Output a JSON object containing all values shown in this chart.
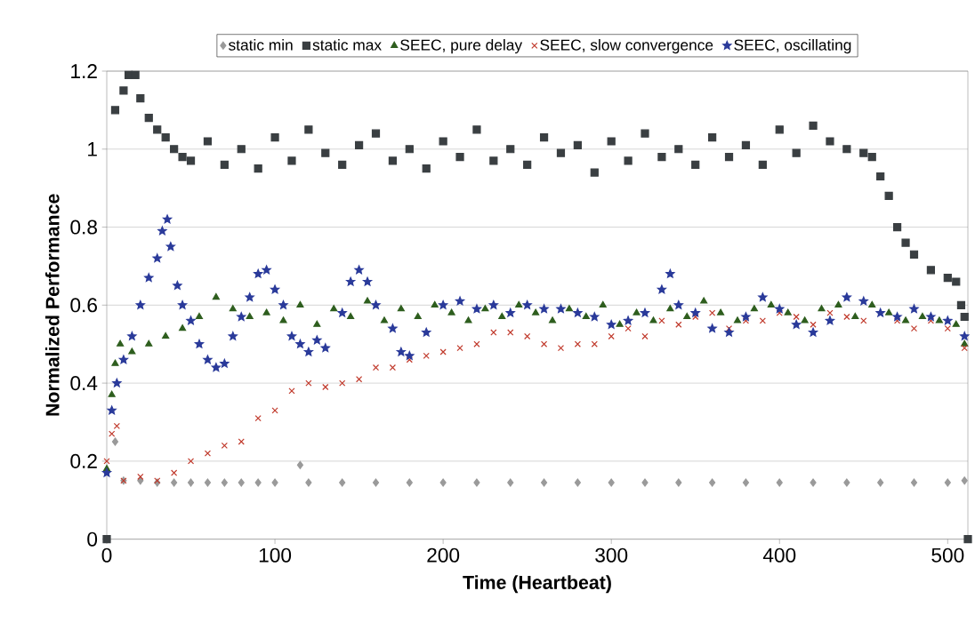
{
  "chart_data": {
    "type": "scatter",
    "xlabel": "Time (Heartbeat)",
    "ylabel": "Normalized Performance",
    "xlim": [
      0,
      512
    ],
    "ylim": [
      0,
      1.2
    ],
    "xticks": [
      0,
      100,
      200,
      300,
      400,
      500
    ],
    "yticks": [
      0,
      0.2,
      0.4,
      0.6,
      0.8,
      1,
      1.2
    ],
    "grid": "y",
    "legend": "top",
    "series": [
      {
        "name": "static min",
        "color": "#9a9a9a",
        "marker": "diamond",
        "x": [
          5,
          10,
          20,
          30,
          40,
          50,
          60,
          70,
          80,
          90,
          100,
          115,
          120,
          140,
          160,
          180,
          200,
          220,
          240,
          260,
          280,
          300,
          320,
          340,
          360,
          380,
          400,
          420,
          440,
          460,
          480,
          500,
          510
        ],
        "values": [
          0.25,
          0.15,
          0.15,
          0.145,
          0.145,
          0.145,
          0.145,
          0.145,
          0.145,
          0.145,
          0.145,
          0.19,
          0.145,
          0.145,
          0.145,
          0.145,
          0.145,
          0.145,
          0.145,
          0.145,
          0.145,
          0.145,
          0.145,
          0.145,
          0.145,
          0.145,
          0.145,
          0.145,
          0.145,
          0.145,
          0.145,
          0.145,
          0.15
        ]
      },
      {
        "name": "static max",
        "color": "#3a3f42",
        "marker": "square",
        "x": [
          0,
          5,
          10,
          13,
          17,
          20,
          25,
          30,
          35,
          40,
          45,
          50,
          60,
          70,
          80,
          90,
          100,
          110,
          120,
          130,
          140,
          150,
          160,
          170,
          180,
          190,
          200,
          210,
          220,
          230,
          240,
          250,
          260,
          270,
          280,
          290,
          300,
          310,
          320,
          330,
          340,
          350,
          360,
          370,
          380,
          390,
          400,
          410,
          420,
          430,
          440,
          450,
          455,
          460,
          465,
          470,
          475,
          480,
          490,
          500,
          505,
          508,
          510,
          512
        ],
        "values": [
          0,
          1.1,
          1.15,
          1.19,
          1.19,
          1.13,
          1.08,
          1.05,
          1.03,
          1.0,
          0.98,
          0.97,
          1.02,
          0.96,
          1.0,
          0.95,
          1.03,
          0.97,
          1.05,
          0.99,
          0.96,
          1.01,
          1.04,
          0.97,
          1.0,
          0.95,
          1.02,
          0.98,
          1.05,
          0.97,
          1.0,
          0.96,
          1.03,
          0.99,
          1.01,
          0.94,
          1.02,
          0.97,
          1.04,
          0.98,
          1.0,
          0.96,
          1.03,
          0.98,
          1.01,
          0.96,
          1.05,
          0.99,
          1.06,
          1.02,
          1.0,
          0.99,
          0.98,
          0.93,
          0.88,
          0.8,
          0.76,
          0.73,
          0.69,
          0.67,
          0.66,
          0.6,
          0.57,
          0
        ]
      },
      {
        "name": "SEEC, pure delay",
        "color": "#2e5e1e",
        "marker": "triangle",
        "x": [
          0,
          3,
          5,
          8,
          15,
          25,
          35,
          45,
          55,
          65,
          75,
          85,
          95,
          105,
          115,
          125,
          135,
          145,
          155,
          165,
          175,
          185,
          195,
          205,
          215,
          225,
          235,
          245,
          255,
          265,
          275,
          285,
          295,
          305,
          315,
          325,
          335,
          345,
          355,
          365,
          375,
          385,
          395,
          405,
          415,
          425,
          435,
          445,
          455,
          465,
          475,
          485,
          495,
          505,
          510
        ],
        "values": [
          0.18,
          0.37,
          0.45,
          0.5,
          0.48,
          0.5,
          0.52,
          0.54,
          0.57,
          0.62,
          0.59,
          0.57,
          0.58,
          0.56,
          0.6,
          0.55,
          0.59,
          0.57,
          0.61,
          0.56,
          0.59,
          0.57,
          0.6,
          0.58,
          0.56,
          0.59,
          0.57,
          0.6,
          0.58,
          0.56,
          0.59,
          0.57,
          0.6,
          0.55,
          0.58,
          0.56,
          0.59,
          0.57,
          0.61,
          0.58,
          0.56,
          0.59,
          0.6,
          0.58,
          0.56,
          0.59,
          0.6,
          0.57,
          0.6,
          0.58,
          0.56,
          0.57,
          0.56,
          0.55,
          0.5
        ]
      },
      {
        "name": "SEEC, slow convergence",
        "color": "#c0392b",
        "marker": "cross",
        "x": [
          0,
          3,
          6,
          10,
          20,
          30,
          40,
          50,
          60,
          70,
          80,
          90,
          100,
          110,
          120,
          130,
          140,
          150,
          160,
          170,
          180,
          190,
          200,
          210,
          220,
          230,
          240,
          250,
          260,
          270,
          280,
          290,
          300,
          310,
          320,
          330,
          340,
          350,
          360,
          370,
          380,
          390,
          400,
          410,
          420,
          430,
          440,
          450,
          470,
          480,
          490,
          500,
          510
        ],
        "values": [
          0.2,
          0.27,
          0.29,
          0.15,
          0.16,
          0.15,
          0.17,
          0.2,
          0.22,
          0.24,
          0.25,
          0.31,
          0.33,
          0.38,
          0.4,
          0.39,
          0.4,
          0.41,
          0.44,
          0.44,
          0.46,
          0.47,
          0.48,
          0.49,
          0.5,
          0.53,
          0.53,
          0.52,
          0.5,
          0.49,
          0.5,
          0.5,
          0.52,
          0.54,
          0.52,
          0.56,
          0.55,
          0.57,
          0.58,
          0.54,
          0.56,
          0.56,
          0.58,
          0.57,
          0.55,
          0.58,
          0.57,
          0.56,
          0.56,
          0.54,
          0.56,
          0.54,
          0.49
        ]
      },
      {
        "name": "SEEC, oscillating",
        "color": "#2a3a9a",
        "marker": "star",
        "x": [
          0,
          3,
          6,
          10,
          15,
          20,
          25,
          30,
          33,
          36,
          38,
          42,
          45,
          50,
          55,
          60,
          65,
          70,
          75,
          80,
          85,
          90,
          95,
          100,
          105,
          110,
          115,
          120,
          125,
          130,
          140,
          145,
          150,
          155,
          160,
          170,
          175,
          180,
          190,
          200,
          210,
          220,
          230,
          240,
          250,
          260,
          270,
          280,
          290,
          300,
          310,
          320,
          330,
          335,
          340,
          350,
          360,
          370,
          380,
          390,
          400,
          410,
          420,
          430,
          440,
          450,
          460,
          470,
          480,
          490,
          500,
          510
        ],
        "values": [
          0.17,
          0.33,
          0.4,
          0.46,
          0.52,
          0.6,
          0.67,
          0.72,
          0.79,
          0.82,
          0.75,
          0.65,
          0.6,
          0.56,
          0.5,
          0.46,
          0.44,
          0.45,
          0.52,
          0.57,
          0.62,
          0.68,
          0.69,
          0.64,
          0.6,
          0.52,
          0.5,
          0.48,
          0.51,
          0.49,
          0.58,
          0.66,
          0.69,
          0.66,
          0.6,
          0.54,
          0.48,
          0.47,
          0.53,
          0.6,
          0.61,
          0.59,
          0.6,
          0.58,
          0.6,
          0.59,
          0.59,
          0.58,
          0.57,
          0.55,
          0.56,
          0.58,
          0.64,
          0.68,
          0.6,
          0.58,
          0.54,
          0.53,
          0.57,
          0.62,
          0.59,
          0.55,
          0.53,
          0.56,
          0.62,
          0.61,
          0.58,
          0.57,
          0.59,
          0.57,
          0.56,
          0.52
        ]
      }
    ]
  }
}
